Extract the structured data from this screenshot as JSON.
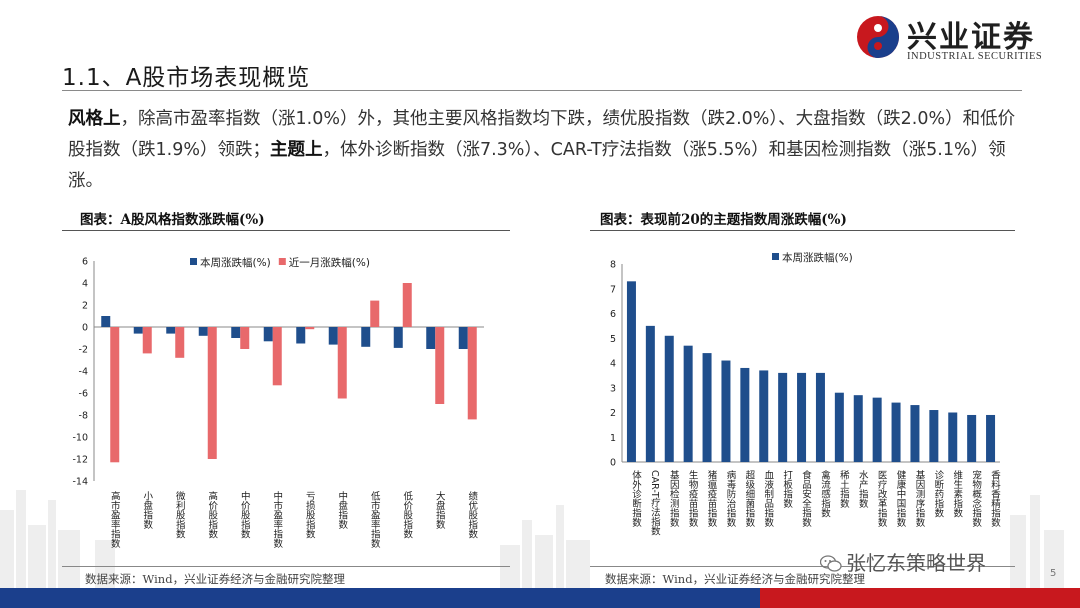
{
  "header": {
    "brand_cn": "兴业证券",
    "brand_en": "INDUSTRIAL SECURITIES",
    "page_title": "1.1、A股市场表现概览"
  },
  "summary": {
    "p1_bold": "风格上",
    "p1_text": "，除高市盈率指数（涨1.0%）外，其他主要风格指数均下跌，绩优股指数（跌2.0%）、大盘指数（跌2.0%）和低价股指数（跌1.9%）领跌；",
    "p2_bold": "主题上",
    "p2_text": "，体外诊断指数（涨7.3%）、CAR-T疗法指数（涨5.5%）和基因检测指数（涨5.1%）领涨。"
  },
  "left_panel": {
    "title": "图表：A股风格指数涨跌幅(%)",
    "source": "数据来源：Wind，兴业证券经济与金融研究院整理"
  },
  "right_panel": {
    "title": "图表：表现前20的主题指数周涨跌幅(%)",
    "source": "数据来源：Wind，兴业证券经济与金融研究院整理"
  },
  "watermark": "张忆东策略世界",
  "page_number": "5",
  "colors": {
    "blue": "#1f4e8c",
    "red": "#e8696b",
    "footer_blue": "#1b3f8c",
    "footer_red": "#c8181e"
  },
  "chart_data": [
    {
      "type": "bar",
      "title": "图表：A股风格指数涨跌幅(%)",
      "categories": [
        "高市盈率指数",
        "小盘指数",
        "微利股指数",
        "高价股指数",
        "中价股指数",
        "中市盈率指数",
        "亏损股指数",
        "中盘指数",
        "低市盈率指数",
        "低价股指数",
        "大盘指数",
        "绩优股指数"
      ],
      "series": [
        {
          "name": "本周涨跌幅(%)",
          "color": "#1f4e8c",
          "values": [
            1.0,
            -0.6,
            -0.6,
            -0.8,
            -1.0,
            -1.3,
            -1.5,
            -1.6,
            -1.8,
            -1.9,
            -2.0,
            -2.0
          ]
        },
        {
          "name": "近一月涨跌幅(%)",
          "color": "#e8696b",
          "values": [
            -12.3,
            -2.4,
            -2.8,
            -12.0,
            -2.0,
            -5.3,
            -0.2,
            -6.5,
            2.4,
            4.0,
            -7.0,
            -8.4
          ]
        }
      ],
      "ylim": [
        -14,
        6
      ],
      "yticks": [
        -14,
        -12,
        -10,
        -8,
        -6,
        -4,
        -2,
        0,
        2,
        4,
        6
      ],
      "legend": "top"
    },
    {
      "type": "bar",
      "title": "图表：表现前20的主题指数周涨跌幅(%)",
      "categories": [
        "体外诊断指数",
        "CAR-T疗法指数",
        "基因检测指数",
        "生物疫苗指数",
        "猪瘟疫苗指数",
        "病毒防治指数",
        "超级细菌指数",
        "血液制品指数",
        "打板指数",
        "食品安全指数",
        "禽流感指数",
        "稀土指数",
        "水产指数",
        "医疗改革指数",
        "健康中国指数",
        "基因测序指数",
        "诊断药指数",
        "维生素指数",
        "宠物概念指数",
        "香料香精指数"
      ],
      "series": [
        {
          "name": "本周涨跌幅(%)",
          "color": "#1f4e8c",
          "values": [
            7.3,
            5.5,
            5.1,
            4.7,
            4.4,
            4.1,
            3.8,
            3.7,
            3.6,
            3.6,
            3.6,
            2.8,
            2.7,
            2.6,
            2.4,
            2.3,
            2.1,
            2.0,
            1.9,
            1.9
          ]
        }
      ],
      "ylim": [
        0,
        8
      ],
      "yticks": [
        0,
        1,
        2,
        3,
        4,
        5,
        6,
        7,
        8
      ],
      "legend": "top"
    }
  ]
}
